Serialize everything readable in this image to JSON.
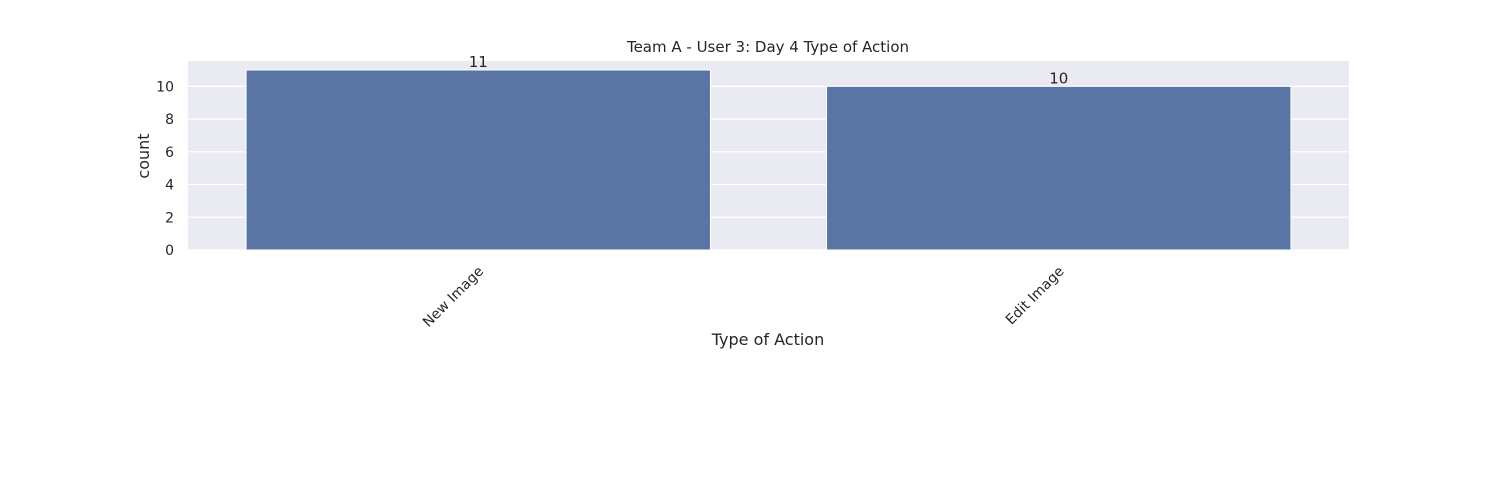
{
  "chart_data": {
    "type": "bar",
    "title": "Team A - User 3: Day 4 Type of Action",
    "xlabel": "Type of Action",
    "ylabel": "count",
    "categories": [
      "New Image",
      "Edit Image"
    ],
    "values": [
      11,
      10
    ],
    "data_labels": [
      "11",
      "10"
    ],
    "yticks": [
      0,
      2,
      4,
      6,
      8,
      10
    ],
    "ylim": [
      0,
      11.55
    ],
    "grid": true,
    "bar_color": "#5875a4",
    "plot_background": "#eaeaf2",
    "grid_color": "#ffffff"
  }
}
